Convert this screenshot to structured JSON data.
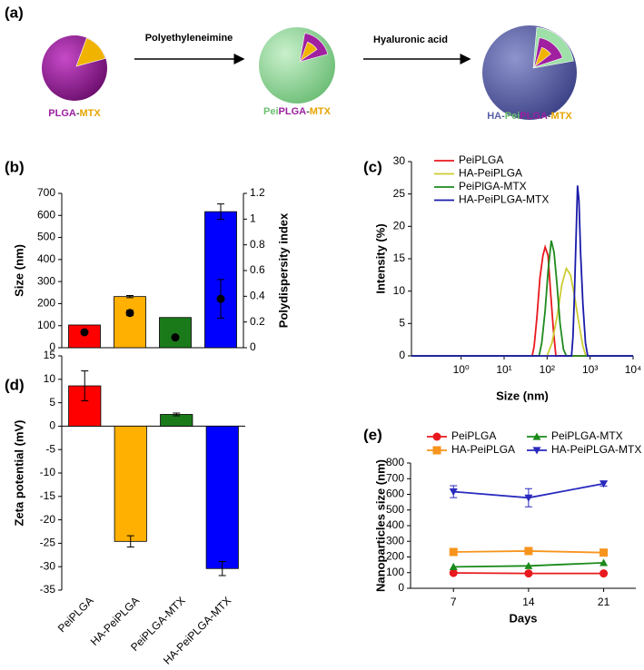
{
  "scheme": {
    "panel": "(a)",
    "steps": [
      {
        "label": [
          {
            "text": "PLGA",
            "color": "#9b1fa0"
          },
          {
            "text": "-",
            "color": "#555555"
          },
          {
            "text": "MTX",
            "color": "#e6a400"
          }
        ]
      },
      {
        "label": [
          {
            "text": "Pei",
            "color": "#6cc070"
          },
          {
            "text": "PLGA",
            "color": "#9b1fa0"
          },
          {
            "text": "-",
            "color": "#555555"
          },
          {
            "text": "MTX",
            "color": "#e6a400"
          }
        ]
      },
      {
        "label": [
          {
            "text": "HA-",
            "color": "#5a5fa8"
          },
          {
            "text": "Pei",
            "color": "#6cc070"
          },
          {
            "text": "PLGA",
            "color": "#9b1fa0"
          },
          {
            "text": "-",
            "color": "#555555"
          },
          {
            "text": "MTX",
            "color": "#e6a400"
          }
        ]
      }
    ],
    "arrows": [
      {
        "text": "Polyethyleneimine",
        "color": "#6cc070"
      },
      {
        "text": "Hyaluronic acid",
        "color": "#5a5fa8"
      }
    ]
  },
  "chart_data": [
    {
      "type": "bar",
      "panel": "(b)",
      "ylabel": "Size (nm)",
      "y2label": "Polydispersity index",
      "categories": [
        null,
        null,
        null,
        null
      ],
      "series": [
        {
          "colors": [
            "#ff0000",
            "#ffb000",
            "#1a7a1a",
            "#0000ff"
          ],
          "values": [
            103,
            232,
            137,
            617
          ],
          "errors": [
            null,
            5,
            null,
            35
          ]
        },
        {
          "axis": "y2",
          "marker": "circle",
          "color": "#000000",
          "values": [
            0.12,
            0.27,
            0.08,
            0.38
          ],
          "errors": [
            null,
            0.02,
            null,
            0.15
          ]
        }
      ],
      "ylim": [
        0,
        700
      ],
      "yticks": [
        0,
        100,
        200,
        300,
        400,
        500,
        600,
        700
      ],
      "y2lim": [
        0,
        1.2
      ],
      "y2ticks": [
        0,
        0.2,
        0.4,
        0.6,
        0.8,
        1,
        1.2
      ]
    },
    {
      "type": "line",
      "panel": "(c)",
      "xlabel": "Size (nm)",
      "ylabel": "Intensity (%)",
      "xscale": "log",
      "legend": "upper left",
      "series": [
        {
          "name": "PeiPLGA",
          "color": "#e8191e",
          "x": [
            0.07,
            45,
            50,
            58,
            68,
            80,
            90,
            105,
            120,
            140,
            160,
            10000
          ],
          "values": [
            0,
            0,
            1.5,
            6,
            12,
            15.5,
            16.8,
            15.5,
            10,
            4,
            0,
            0
          ]
        },
        {
          "name": "HA-PeiPLGA",
          "color": "#cccc33",
          "x": [
            0.07,
            100,
            130,
            170,
            220,
            280,
            350,
            440,
            550,
            680,
            800,
            10000
          ],
          "values": [
            0,
            0,
            2,
            6,
            11,
            13.5,
            12.5,
            9,
            5,
            1.5,
            0,
            0
          ]
        },
        {
          "name": "PeiPlGA-MTX",
          "color": "#1e8a1e",
          "x": [
            0.07,
            65,
            75,
            90,
            105,
            125,
            145,
            170,
            200,
            240,
            280,
            10000
          ],
          "values": [
            0,
            0,
            2,
            7,
            13,
            17.8,
            16,
            11,
            5,
            1,
            0,
            0
          ]
        },
        {
          "name": "HA-PeiPLGA-MTX",
          "color": "#1a1aaa",
          "x": [
            0.07,
            370,
            400,
            430,
            470,
            510,
            550,
            600,
            680,
            780,
            880,
            10000
          ],
          "values": [
            0,
            0,
            3,
            9,
            18,
            26.3,
            24,
            16,
            8,
            2,
            0,
            0
          ]
        }
      ],
      "xlim": [
        0.07,
        10000
      ],
      "xticks": [
        {
          "value": 1,
          "label": "10⁰"
        },
        {
          "value": 10,
          "label": "10¹"
        },
        {
          "value": 100,
          "label": "10²"
        },
        {
          "value": 1000,
          "label": "10³"
        },
        {
          "value": 10000,
          "label": "10⁴"
        }
      ],
      "ylim": [
        0,
        30
      ],
      "yticks": [
        0,
        5,
        10,
        15,
        20,
        25,
        30
      ]
    },
    {
      "type": "bar",
      "panel": "(d)",
      "ylabel": "Zeta potential (mV)",
      "categories": [
        "PeiPLGA",
        "HA-PeiPLGA",
        "PeiPLGA-MTX",
        "HA-PeiPLGA-MTX"
      ],
      "series": [
        {
          "colors": [
            "#ff0000",
            "#ffb000",
            "#1a7a1a",
            "#0000ff"
          ],
          "values": [
            8.6,
            -24.6,
            2.5,
            -30.4
          ],
          "errors": [
            3.2,
            1.2,
            0.3,
            1.5
          ]
        }
      ],
      "ylim": [
        -35,
        15
      ],
      "yticks": [
        -35,
        -30,
        -25,
        -20,
        -15,
        -10,
        -5,
        0,
        5,
        10,
        15
      ]
    },
    {
      "type": "line",
      "panel": "(e)",
      "xlabel": "Days",
      "ylabel": "Nanoparticles size (nm)",
      "legend": "top",
      "x": [
        7,
        14,
        21
      ],
      "series": [
        {
          "name": "PeiPLGA",
          "color": "#e8191e",
          "marker": "circle",
          "values": [
            98,
            95,
            95
          ]
        },
        {
          "name": "HA-PeiPLGA",
          "color": "#f7941d",
          "marker": "square",
          "values": [
            232,
            238,
            228
          ]
        },
        {
          "name": "PeiPLGA-MTX",
          "color": "#1a8a1a",
          "marker": "triangle",
          "values": [
            137,
            143,
            163
          ]
        },
        {
          "name": "HA-PeiPLGA-MTX",
          "color": "#2a2abf",
          "marker": "triangle-down",
          "values": [
            617,
            578,
            668
          ],
          "errors": [
            38,
            58,
            15
          ]
        }
      ],
      "xlim": [
        3,
        24
      ],
      "xticks": [
        7,
        14,
        21
      ],
      "ylim": [
        0,
        800
      ],
      "yticks": [
        0,
        100,
        200,
        300,
        400,
        500,
        600,
        700,
        800
      ]
    }
  ]
}
